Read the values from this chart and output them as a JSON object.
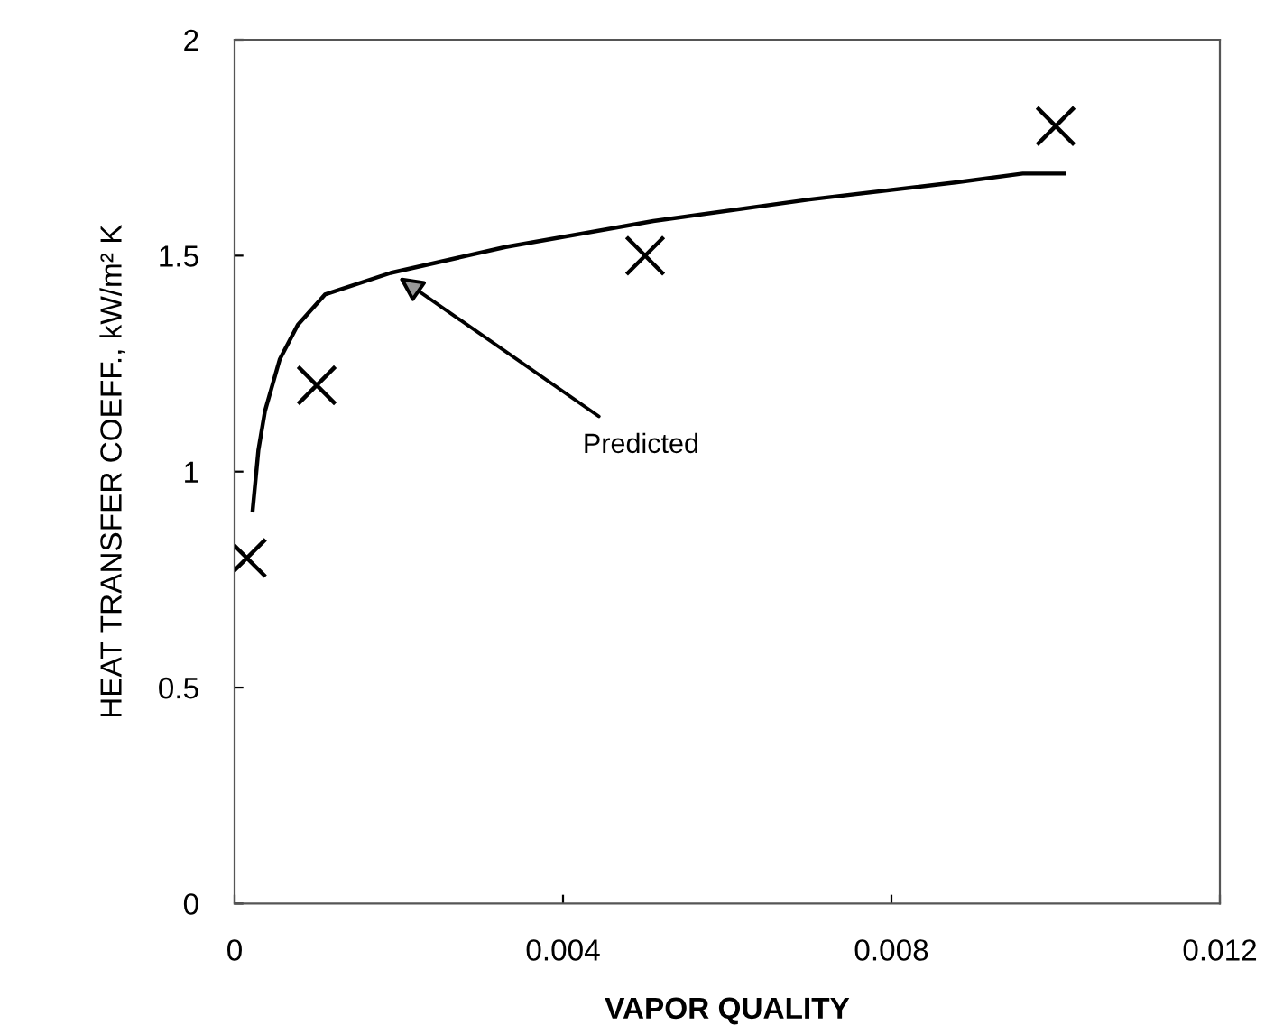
{
  "chart_data": {
    "type": "scatter",
    "xlabel": "VAPOR QUALITY",
    "ylabel": "HEAT TRANSFER COEFF., kW/m² K",
    "xlim": [
      0,
      0.012
    ],
    "xticks": [
      0,
      0.004,
      0.008,
      0.012
    ],
    "ylim": [
      0,
      2
    ],
    "yticks": [
      0,
      0.5,
      1,
      1.5,
      2
    ],
    "grid": false,
    "series": [
      {
        "color": "#000000",
        "marker": "cross",
        "x": [
          0.00015,
          0.001,
          0.005,
          0.01
        ],
        "values": [
          0.8,
          1.2,
          1.5,
          1.8
        ]
      },
      {
        "type": "line",
        "color": "#000000",
        "marker": "none",
        "line_style": "solid",
        "x": [
          0.00022,
          0.00029,
          0.00037,
          0.00055,
          0.00077,
          0.0011,
          0.0019,
          0.0033,
          0.0051,
          0.007,
          0.0088,
          0.0096,
          0.00985,
          0.0101
        ],
        "values": [
          0.91,
          1.05,
          1.14,
          1.26,
          1.34,
          1.41,
          1.46,
          1.52,
          1.58,
          1.63,
          1.67,
          1.69,
          1.69,
          1.69
        ]
      }
    ],
    "annotations": [
      {
        "text": "Predicted",
        "x": 0.002,
        "y": 1.45
      }
    ]
  }
}
